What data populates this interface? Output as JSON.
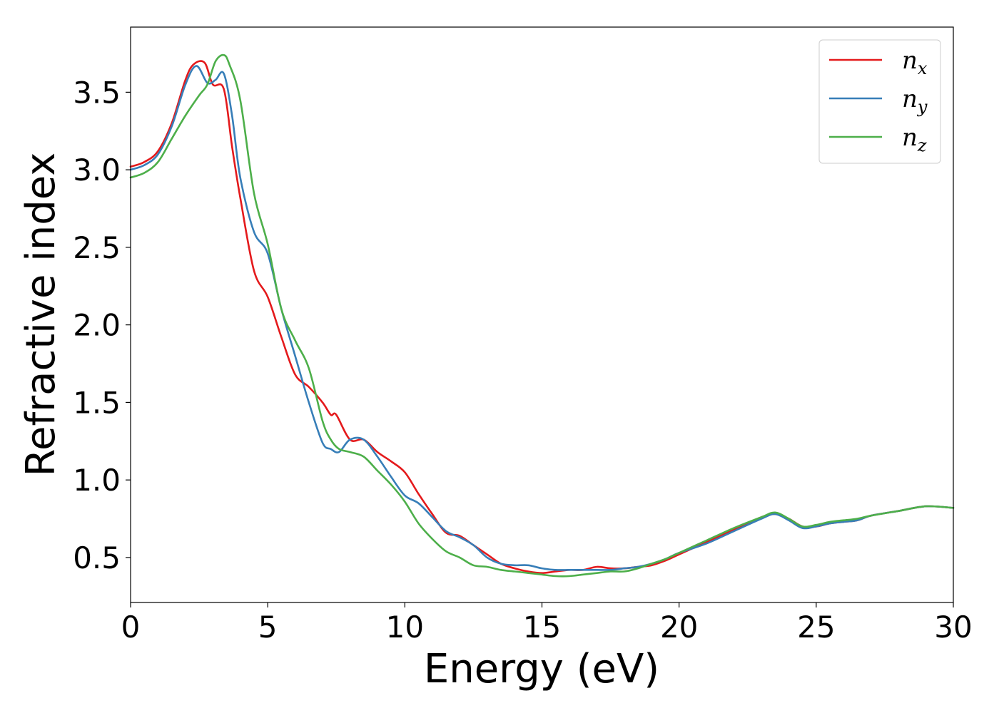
{
  "chart_data": {
    "type": "line",
    "xlabel": "Energy (eV)",
    "ylabel": "Refractive index",
    "xlim": [
      0,
      30
    ],
    "ylim": [
      0.21,
      3.92
    ],
    "xticks": [
      0,
      5,
      10,
      15,
      20,
      25,
      30
    ],
    "yticks": [
      0.5,
      1.0,
      1.5,
      2.0,
      2.5,
      3.0,
      3.5
    ],
    "xtick_labels": [
      "0",
      "5",
      "10",
      "15",
      "20",
      "25",
      "30"
    ],
    "ytick_labels": [
      "0.5",
      "1.0",
      "1.5",
      "2.0",
      "2.5",
      "3.0",
      "3.5"
    ],
    "grid": false,
    "legend_position": "top-right",
    "series": [
      {
        "name": "n",
        "subscript": "x",
        "color": "#e41a1c",
        "x": [
          0,
          0.5,
          1.0,
          1.5,
          2.0,
          2.3,
          2.7,
          3.0,
          3.4,
          3.7,
          4.0,
          4.5,
          5.0,
          5.5,
          6.0,
          6.5,
          7.0,
          7.3,
          7.5,
          8.0,
          8.5,
          9.0,
          9.5,
          10.0,
          10.5,
          11.0,
          11.5,
          12.0,
          12.5,
          13.0,
          13.5,
          14.0,
          14.5,
          15.0,
          15.5,
          16.0,
          16.5,
          17.0,
          17.5,
          18.0,
          18.5,
          19.0,
          19.5,
          20.0,
          21.0,
          22.0,
          23.0,
          23.5,
          24.0,
          24.5,
          25.0,
          25.5,
          26.0,
          26.5,
          27.0,
          28.0,
          29.0,
          30.0
        ],
        "y": [
          3.02,
          3.05,
          3.12,
          3.3,
          3.58,
          3.68,
          3.69,
          3.55,
          3.52,
          3.15,
          2.82,
          2.35,
          2.18,
          1.92,
          1.68,
          1.6,
          1.5,
          1.42,
          1.42,
          1.26,
          1.26,
          1.18,
          1.12,
          1.05,
          0.91,
          0.78,
          0.66,
          0.64,
          0.58,
          0.52,
          0.46,
          0.43,
          0.41,
          0.4,
          0.41,
          0.42,
          0.42,
          0.44,
          0.43,
          0.43,
          0.44,
          0.45,
          0.48,
          0.52,
          0.6,
          0.68,
          0.76,
          0.78,
          0.75,
          0.7,
          0.7,
          0.72,
          0.73,
          0.74,
          0.77,
          0.8,
          0.83,
          0.82
        ]
      },
      {
        "name": "n",
        "subscript": "y",
        "color": "#377eb8",
        "x": [
          0,
          0.5,
          1.0,
          1.5,
          2.0,
          2.4,
          2.8,
          3.1,
          3.4,
          3.7,
          4.0,
          4.5,
          5.0,
          5.5,
          6.0,
          6.5,
          7.0,
          7.3,
          7.6,
          8.0,
          8.5,
          9.0,
          9.5,
          10.0,
          10.5,
          11.0,
          11.5,
          12.0,
          12.5,
          13.0,
          13.5,
          14.0,
          14.5,
          15.0,
          15.5,
          16.0,
          16.5,
          17.0,
          17.5,
          18.0,
          18.5,
          19.0,
          19.5,
          20.0,
          21.0,
          22.0,
          23.0,
          23.5,
          24.0,
          24.5,
          25.0,
          25.5,
          26.0,
          26.5,
          27.0,
          28.0,
          29.0,
          30.0
        ],
        "y": [
          3.0,
          3.03,
          3.1,
          3.28,
          3.55,
          3.67,
          3.56,
          3.58,
          3.62,
          3.35,
          2.95,
          2.6,
          2.46,
          2.1,
          1.8,
          1.5,
          1.24,
          1.2,
          1.18,
          1.26,
          1.26,
          1.15,
          1.02,
          0.9,
          0.85,
          0.76,
          0.67,
          0.63,
          0.58,
          0.5,
          0.46,
          0.45,
          0.45,
          0.43,
          0.42,
          0.42,
          0.42,
          0.42,
          0.42,
          0.43,
          0.44,
          0.46,
          0.49,
          0.53,
          0.59,
          0.67,
          0.75,
          0.78,
          0.74,
          0.69,
          0.7,
          0.72,
          0.73,
          0.74,
          0.77,
          0.8,
          0.83,
          0.82
        ]
      },
      {
        "name": "n",
        "subscript": "z",
        "color": "#4daf4a",
        "x": [
          0,
          0.5,
          1.0,
          1.5,
          2.0,
          2.5,
          2.8,
          3.1,
          3.4,
          3.6,
          4.0,
          4.5,
          5.0,
          5.5,
          6.0,
          6.5,
          7.0,
          7.3,
          7.6,
          8.0,
          8.5,
          9.0,
          9.5,
          10.0,
          10.5,
          11.0,
          11.5,
          12.0,
          12.5,
          13.0,
          13.5,
          14.0,
          14.5,
          15.0,
          15.5,
          16.0,
          16.5,
          17.0,
          17.5,
          18.0,
          18.5,
          19.0,
          19.5,
          20.0,
          21.0,
          22.0,
          23.0,
          23.5,
          24.0,
          24.5,
          25.0,
          25.5,
          26.0,
          26.5,
          27.0,
          28.0,
          29.0,
          30.0
        ],
        "y": [
          2.95,
          2.98,
          3.05,
          3.2,
          3.35,
          3.48,
          3.55,
          3.7,
          3.74,
          3.68,
          3.45,
          2.85,
          2.52,
          2.1,
          1.9,
          1.72,
          1.38,
          1.26,
          1.2,
          1.18,
          1.15,
          1.06,
          0.97,
          0.86,
          0.72,
          0.62,
          0.54,
          0.5,
          0.45,
          0.44,
          0.42,
          0.41,
          0.4,
          0.39,
          0.38,
          0.38,
          0.39,
          0.4,
          0.41,
          0.41,
          0.43,
          0.46,
          0.49,
          0.53,
          0.61,
          0.69,
          0.76,
          0.79,
          0.75,
          0.7,
          0.71,
          0.73,
          0.74,
          0.75,
          0.77,
          0.8,
          0.83,
          0.82
        ]
      }
    ]
  }
}
